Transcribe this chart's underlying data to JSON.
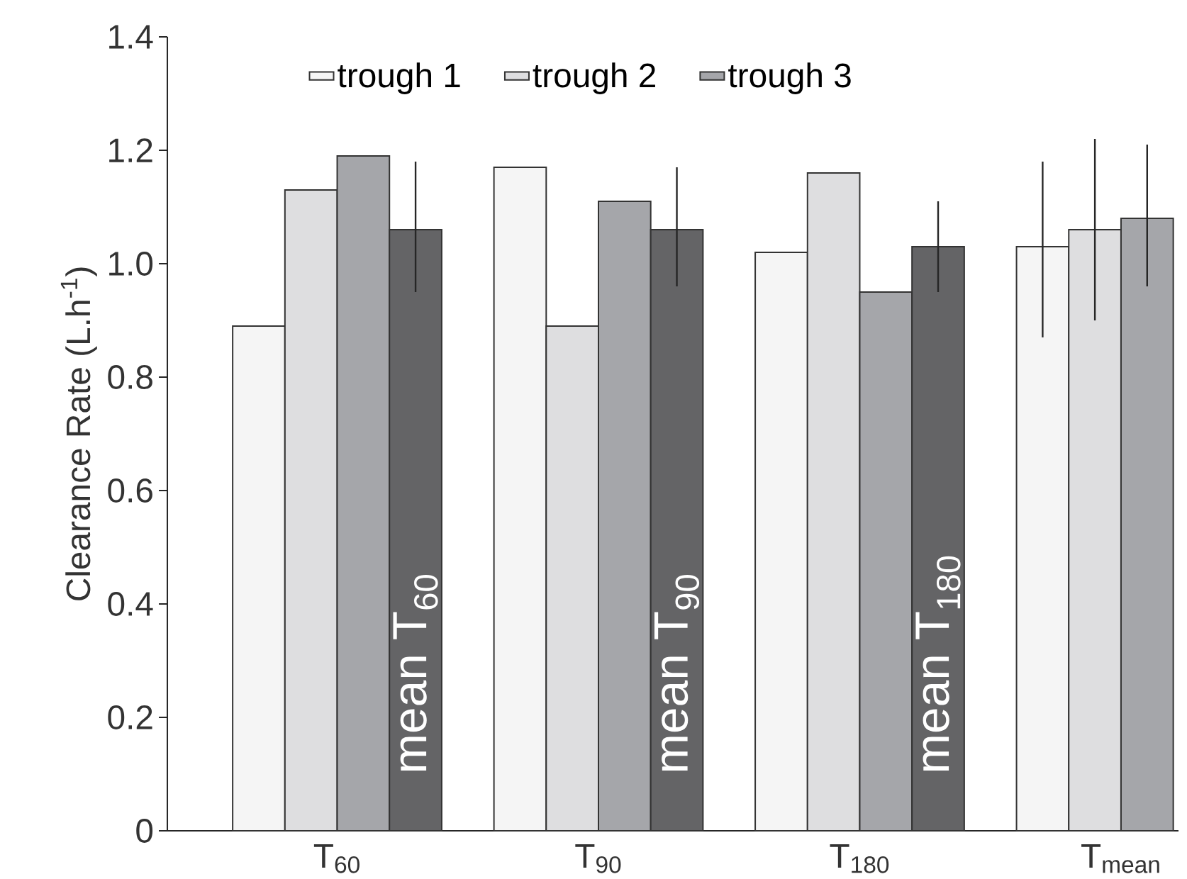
{
  "chart_data": {
    "type": "bar",
    "ylabel": "Clearance Rate (L.h$^{-1}$)",
    "categories": [
      "T$_{60}$",
      "T$_{90}$",
      "T$_{180}$",
      "T$_{mean}$"
    ],
    "series": [
      {
        "name": "trough 1",
        "color": "#f5f5f5",
        "values": [
          0.89,
          1.17,
          1.02,
          1.03
        ],
        "errors": [
          null,
          null,
          null,
          [
            0.87,
            1.18
          ]
        ]
      },
      {
        "name": "trough 2",
        "color": "#dedee0",
        "values": [
          1.13,
          0.89,
          1.16,
          1.06
        ],
        "errors": [
          null,
          null,
          null,
          [
            0.9,
            1.22
          ]
        ]
      },
      {
        "name": "trough 3",
        "color": "#a5a6aa",
        "values": [
          1.19,
          1.11,
          0.95,
          1.08
        ],
        "errors": [
          null,
          null,
          null,
          [
            0.96,
            1.21
          ]
        ]
      },
      {
        "color": "#646466",
        "values": [
          1.06,
          1.06,
          1.03,
          null
        ],
        "errors": [
          [
            0.95,
            1.18
          ],
          [
            0.96,
            1.17
          ],
          [
            0.95,
            1.11
          ],
          null
        ]
      }
    ],
    "annotations": [
      "mean T$_{60}$",
      "mean T$_{90}$",
      "mean T$_{180}$"
    ],
    "ylim": [
      0,
      1.4
    ],
    "yticks": [
      0,
      0.2,
      0.4,
      0.6,
      0.8,
      {
        "value": 1,
        "label": "1.0"
      },
      1.2,
      1.4
    ],
    "legend": "top",
    "grid": false
  }
}
